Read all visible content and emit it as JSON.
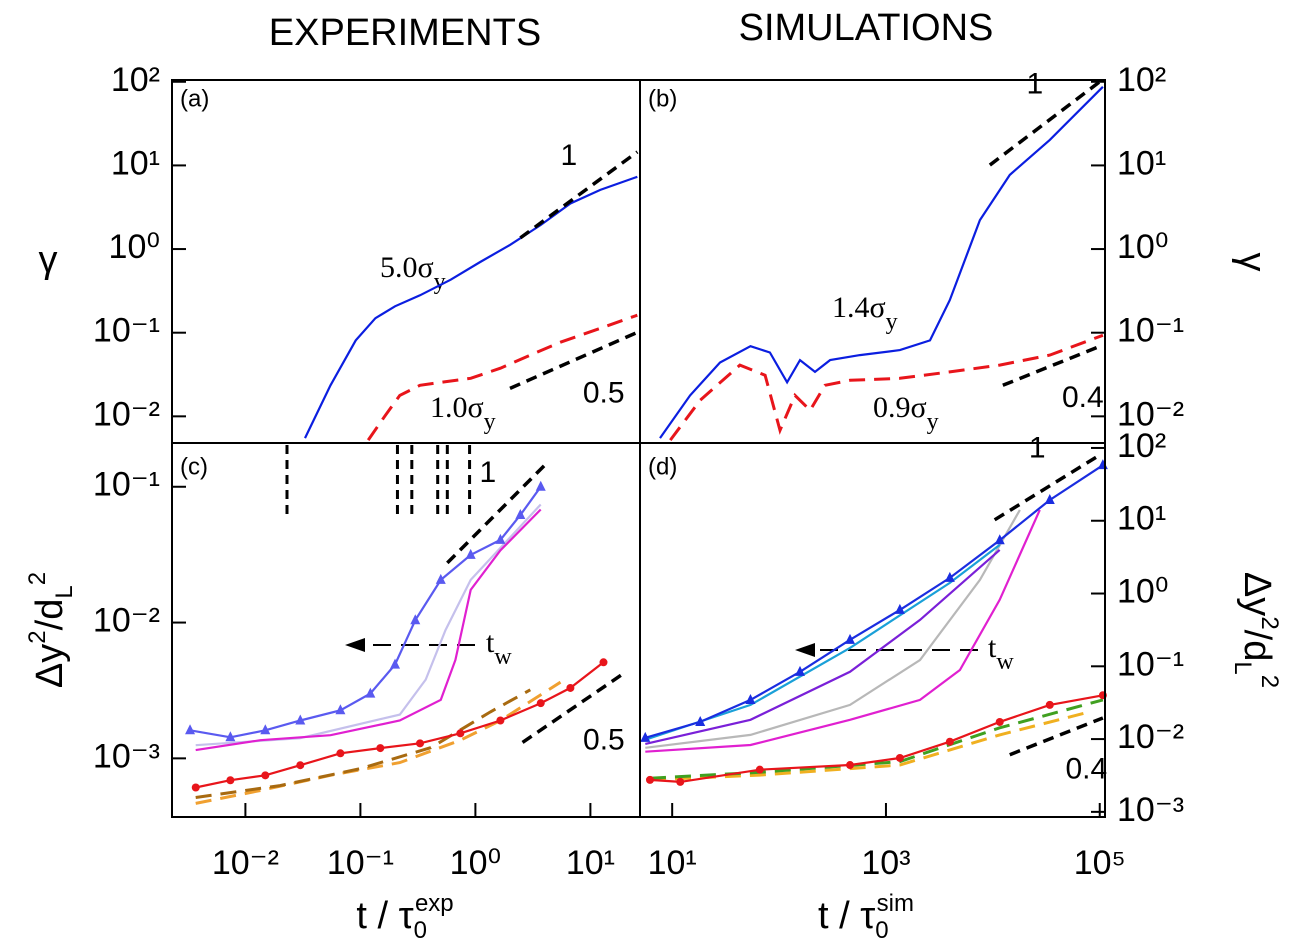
{
  "chart_data": [
    {
      "type": "line",
      "title": "EXPERIMENTS",
      "label": "(a)",
      "ylabel": "γ",
      "log": true,
      "xlim": [
        0.0023,
        27
      ],
      "ylim": [
        0.0048,
        105
      ],
      "yticks": [
        {
          "value": 100,
          "label": "10²"
        },
        {
          "value": 10,
          "label": "10¹"
        },
        {
          "value": 1,
          "label": "10⁰"
        },
        {
          "value": 0.1,
          "label": "10⁻¹"
        },
        {
          "value": 0.01,
          "label": "10⁻²"
        }
      ],
      "annotations": [
        {
          "text": "5.0σ",
          "sub": "y"
        },
        {
          "text": "1.0σ",
          "sub": "y"
        }
      ],
      "series": [
        {
          "color": "#0b1ee0",
          "dash": false,
          "x": [
            0.033,
            0.055,
            0.091,
            0.135,
            0.2,
            0.33,
            0.61,
            1.1,
            2.0,
            3.7,
            6.7,
            12.2,
            25.6
          ],
          "values": [
            0.0055,
            0.0235,
            0.081,
            0.149,
            0.207,
            0.28,
            0.43,
            0.7,
            1.12,
            1.94,
            3.5,
            5.1,
            7.3
          ]
        },
        {
          "color": "#e8151b",
          "dash": true,
          "x": [
            0.117,
            0.165,
            0.22,
            0.33,
            0.5,
            0.91,
            1.65,
            3.0,
            5.5,
            12.2,
            25.6
          ],
          "values": [
            0.0052,
            0.0103,
            0.0178,
            0.0235,
            0.0255,
            0.0285,
            0.0376,
            0.054,
            0.077,
            0.113,
            0.162
          ]
        }
      ],
      "guides": [
        {
          "x": [
            2.46,
            25.6
          ],
          "values": [
            1.36,
            14.5
          ],
          "label": "1"
        },
        {
          "x": [
            2.0,
            25.6
          ],
          "values": [
            0.0216,
            0.101
          ],
          "label": "0.5"
        }
      ]
    },
    {
      "type": "line",
      "title": "SIMULATIONS",
      "label": "(b)",
      "ylabel": "γ",
      "log": true,
      "xlim": [
        5,
        112000
      ],
      "ylim": [
        0.0048,
        105
      ],
      "yticks": [
        {
          "value": 100,
          "label": "10²"
        },
        {
          "value": 10,
          "label": "10¹"
        },
        {
          "value": 1,
          "label": "10⁰"
        },
        {
          "value": 0.1,
          "label": "10⁻¹"
        },
        {
          "value": 0.01,
          "label": "10⁻²"
        }
      ],
      "annotations": [
        {
          "text": "1.4σ",
          "sub": "y"
        },
        {
          "text": "0.9σ",
          "sub": "y"
        }
      ],
      "series": [
        {
          "color": "#0b1ee0",
          "dash": false,
          "x": [
            7.7,
            14.7,
            28,
            54,
            82,
            119,
            157,
            217,
            300,
            571,
            1350,
            2580,
            3960,
            7560,
            14400,
            34100,
            107000
          ],
          "values": [
            0.0055,
            0.0178,
            0.044,
            0.069,
            0.058,
            0.0255,
            0.047,
            0.034,
            0.047,
            0.054,
            0.062,
            0.081,
            0.245,
            2.22,
            7.7,
            20.2,
            87
          ]
        },
        {
          "color": "#e8151b",
          "dash": true,
          "x": [
            9.6,
            18.3,
            43,
            74,
            102,
            141,
            195,
            269,
            461,
            1350,
            3960,
            11600,
            34100,
            107000
          ],
          "values": [
            0.0052,
            0.0156,
            0.041,
            0.031,
            0.0068,
            0.0178,
            0.0118,
            0.0235,
            0.027,
            0.0285,
            0.034,
            0.041,
            0.054,
            0.093
          ]
        }
      ],
      "guides": [
        {
          "x": [
            9380,
            100000
          ],
          "values": [
            10.1,
            100
          ],
          "label": "1"
        },
        {
          "x": [
            12400,
            107000
          ],
          "values": [
            0.0235,
            0.071
          ],
          "label": "0.4"
        }
      ]
    },
    {
      "type": "line",
      "label": "(c)",
      "ylabel": {
        "a": "Δy",
        "b": "2",
        "c": "/d",
        "d": "L",
        "e": "2"
      },
      "xlabel": {
        "a": "t / τ",
        "b": "0",
        "c": "exp"
      },
      "log": true,
      "xlim": [
        0.0023,
        27
      ],
      "ylim": [
        0.00037,
        0.21
      ],
      "xticks": [
        {
          "value": 0.01,
          "label": "10⁻²"
        },
        {
          "value": 0.1,
          "label": "10⁻¹"
        },
        {
          "value": 1,
          "label": "10⁰"
        },
        {
          "value": 10,
          "label": "10¹"
        }
      ],
      "yticks": [
        {
          "value": 0.1,
          "label": "10⁻¹"
        },
        {
          "value": 0.01,
          "label": "10⁻²"
        },
        {
          "value": 0.001,
          "label": "10⁻³"
        }
      ],
      "arrow_label": {
        "text": "t",
        "sub": "w"
      },
      "vlines": [
        0.023,
        0.21,
        0.28,
        0.47,
        0.57,
        0.89
      ],
      "series": [
        {
          "color": "#c5c0ec",
          "dash": false,
          "x": [
            0.0037,
            0.03,
            0.22,
            0.37,
            0.55,
            0.91,
            3.7
          ],
          "values": [
            0.00125,
            0.00141,
            0.0021,
            0.0038,
            0.0088,
            0.0206,
            0.074
          ]
        },
        {
          "color": "#e020d0",
          "dash": false,
          "x": [
            0.0037,
            0.0135,
            0.055,
            0.22,
            0.5,
            0.67,
            0.91,
            1.65,
            3.7
          ],
          "values": [
            0.00115,
            0.00136,
            0.00148,
            0.0019,
            0.0027,
            0.0053,
            0.0174,
            0.034,
            0.068
          ]
        },
        {
          "color": "#5a5af0",
          "dash": false,
          "marker": "triangle",
          "x": [
            0.0033,
            0.0074,
            0.0149,
            0.03,
            0.067,
            0.122,
            0.2,
            0.3,
            0.5,
            0.91,
            1.65,
            2.46,
            3.7
          ],
          "values": [
            0.00161,
            0.00143,
            0.00161,
            0.0019,
            0.00226,
            0.003,
            0.0049,
            0.0104,
            0.0206,
            0.0315,
            0.0406,
            0.062,
            0.1
          ]
        },
        {
          "color": "#f0a030",
          "dash": true,
          "x": [
            0.0037,
            0.0135,
            0.055,
            0.22,
            0.74,
            1.65,
            5.5
          ],
          "values": [
            0.000466,
            0.00058,
            0.00075,
            0.00093,
            0.00136,
            0.0019,
            0.00364
          ]
        },
        {
          "color": "#a86a10",
          "dash": true,
          "x": [
            0.0037,
            0.02,
            0.1,
            0.41,
            1.35,
            3.0
          ],
          "values": [
            0.000515,
            0.00063,
            0.00084,
            0.0012,
            0.0022,
            0.0032
          ]
        },
        {
          "color": "#e8151b",
          "dash": false,
          "marker": "circle",
          "x": [
            0.0037,
            0.0074,
            0.0149,
            0.03,
            0.067,
            0.149,
            0.33,
            0.74,
            1.65,
            3.7,
            6.7,
            13.0
          ],
          "values": [
            0.00061,
            0.00069,
            0.00075,
            0.00089,
            0.00109,
            0.00119,
            0.00129,
            0.00153,
            0.0019,
            0.00255,
            0.0033,
            0.0051
          ]
        }
      ],
      "guides": [
        {
          "x": [
            0.57,
            4.3
          ],
          "values": [
            0.0275,
            0.153
          ],
          "label": "1"
        },
        {
          "x": [
            2.57,
            20.1
          ],
          "values": [
            0.00131,
            0.0043
          ],
          "label": "0.5"
        }
      ]
    },
    {
      "type": "line",
      "label": "(d)",
      "ylabel": {
        "a": "Δy",
        "b": "2",
        "c": "/d",
        "d": "L",
        "e": "2"
      },
      "xlabel": {
        "a": "t / τ",
        "b": "0",
        "c": "sim"
      },
      "log": true,
      "xlim": [
        5,
        112000
      ],
      "ylim": [
        0.00085,
        117
      ],
      "xticks": [
        {
          "value": 10,
          "label": "10¹"
        },
        {
          "value": 1000,
          "label": "10³"
        },
        {
          "value": 100000,
          "label": "10⁵"
        }
      ],
      "yticks": [
        {
          "value": 100,
          "label": "10²"
        },
        {
          "value": 10,
          "label": "10¹"
        },
        {
          "value": 1,
          "label": "10⁰"
        },
        {
          "value": 0.1,
          "label": "10⁻¹"
        },
        {
          "value": 0.01,
          "label": "10⁻²"
        },
        {
          "value": 0.001,
          "label": "10⁻³"
        }
      ],
      "arrow_label": {
        "text": "t",
        "sub": "w"
      },
      "series": [
        {
          "color": "#e020d0",
          "dash": false,
          "x": [
            5.6,
            54,
            461,
            2080,
            4920,
            11600,
            27500
          ],
          "values": [
            0.0067,
            0.0083,
            0.0184,
            0.0345,
            0.089,
            0.82,
            14.1
          ]
        },
        {
          "color": "#b8b8b8",
          "dash": false,
          "x": [
            5.6,
            54,
            461,
            2080,
            7560,
            17900
          ],
          "values": [
            0.0076,
            0.0114,
            0.0295,
            0.122,
            1.54,
            14.1
          ]
        },
        {
          "color": "#7a20d8",
          "dash": false,
          "x": [
            5.6,
            54,
            461,
            2080,
            11600
          ],
          "values": [
            0.0086,
            0.0184,
            0.084,
            0.434,
            3.97
          ]
        },
        {
          "color": "#1aa0d8",
          "dash": false,
          "x": [
            5.6,
            54,
            461,
            3960,
            11600
          ],
          "values": [
            0.0098,
            0.0295,
            0.179,
            1.4,
            4.66
          ]
        },
        {
          "color": "#1a2de0",
          "dash": false,
          "marker": "triangle",
          "x": [
            5.6,
            18.3,
            54,
            157,
            461,
            1350,
            3960,
            11600,
            34100,
            107000
          ],
          "values": [
            0.0104,
            0.0172,
            0.0345,
            0.084,
            0.231,
            0.596,
            1.64,
            5.4,
            19.3,
            58
          ]
        },
        {
          "color": "#f0b020",
          "dash": true,
          "x": [
            6.2,
            66,
            1350,
            11600,
            80700
          ],
          "values": [
            0.00275,
            0.0032,
            0.0044,
            0.0114,
            0.0237
          ]
        },
        {
          "color": "#40a020",
          "dash": true,
          "x": [
            6.2,
            66,
            1350,
            11600,
            107000
          ],
          "values": [
            0.0029,
            0.0035,
            0.0049,
            0.0143,
            0.0345
          ]
        },
        {
          "color": "#e8151b",
          "dash": false,
          "marker": "circle",
          "x": [
            6.2,
            11.9,
            66,
            461,
            1350,
            3960,
            11600,
            34100,
            107000
          ],
          "values": [
            0.00275,
            0.00258,
            0.0038,
            0.0044,
            0.0055,
            0.0092,
            0.0172,
            0.0295,
            0.04
          ]
        }
      ],
      "guides": [
        {
          "x": [
            10400,
            100000
          ],
          "values": [
            10.3,
            80
          ],
          "label": "1"
        },
        {
          "x": [
            14400,
            107000
          ],
          "values": [
            0.0061,
            0.0195
          ],
          "label": "0.4"
        }
      ]
    }
  ]
}
